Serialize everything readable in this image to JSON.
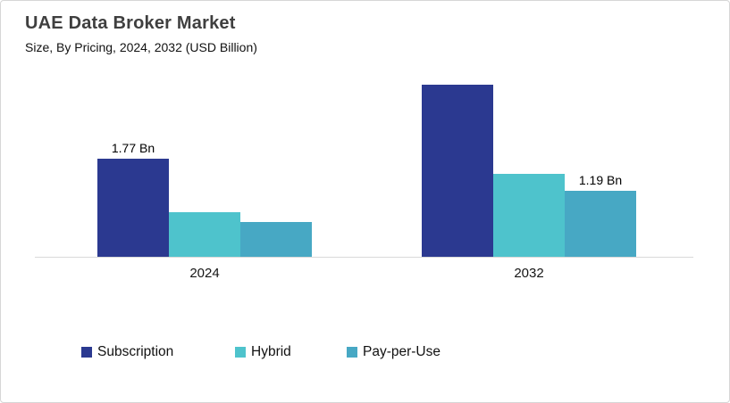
{
  "chart_data": {
    "type": "bar",
    "title": "UAE Data Broker Market",
    "subtitle": "Size, By Pricing, 2024, 2032 (USD Billion)",
    "unit": "USD Billion",
    "categories": [
      "2024",
      "2032"
    ],
    "series": [
      {
        "name": "Subscription",
        "color": "#2B3990",
        "values": [
          1.77,
          3.1
        ],
        "value_labels": [
          "1.77 Bn",
          ""
        ]
      },
      {
        "name": "Hybrid",
        "color": "#4EC3CC",
        "values": [
          0.8,
          1.49
        ],
        "value_labels": [
          "",
          ""
        ]
      },
      {
        "name": "Pay-per-Use",
        "color": "#47A8C4",
        "values": [
          0.62,
          1.19
        ],
        "value_labels": [
          "",
          "1.19 Bn"
        ]
      }
    ],
    "ylim": [
      0,
      3.3
    ],
    "grid": false,
    "legend_position": "bottom"
  }
}
